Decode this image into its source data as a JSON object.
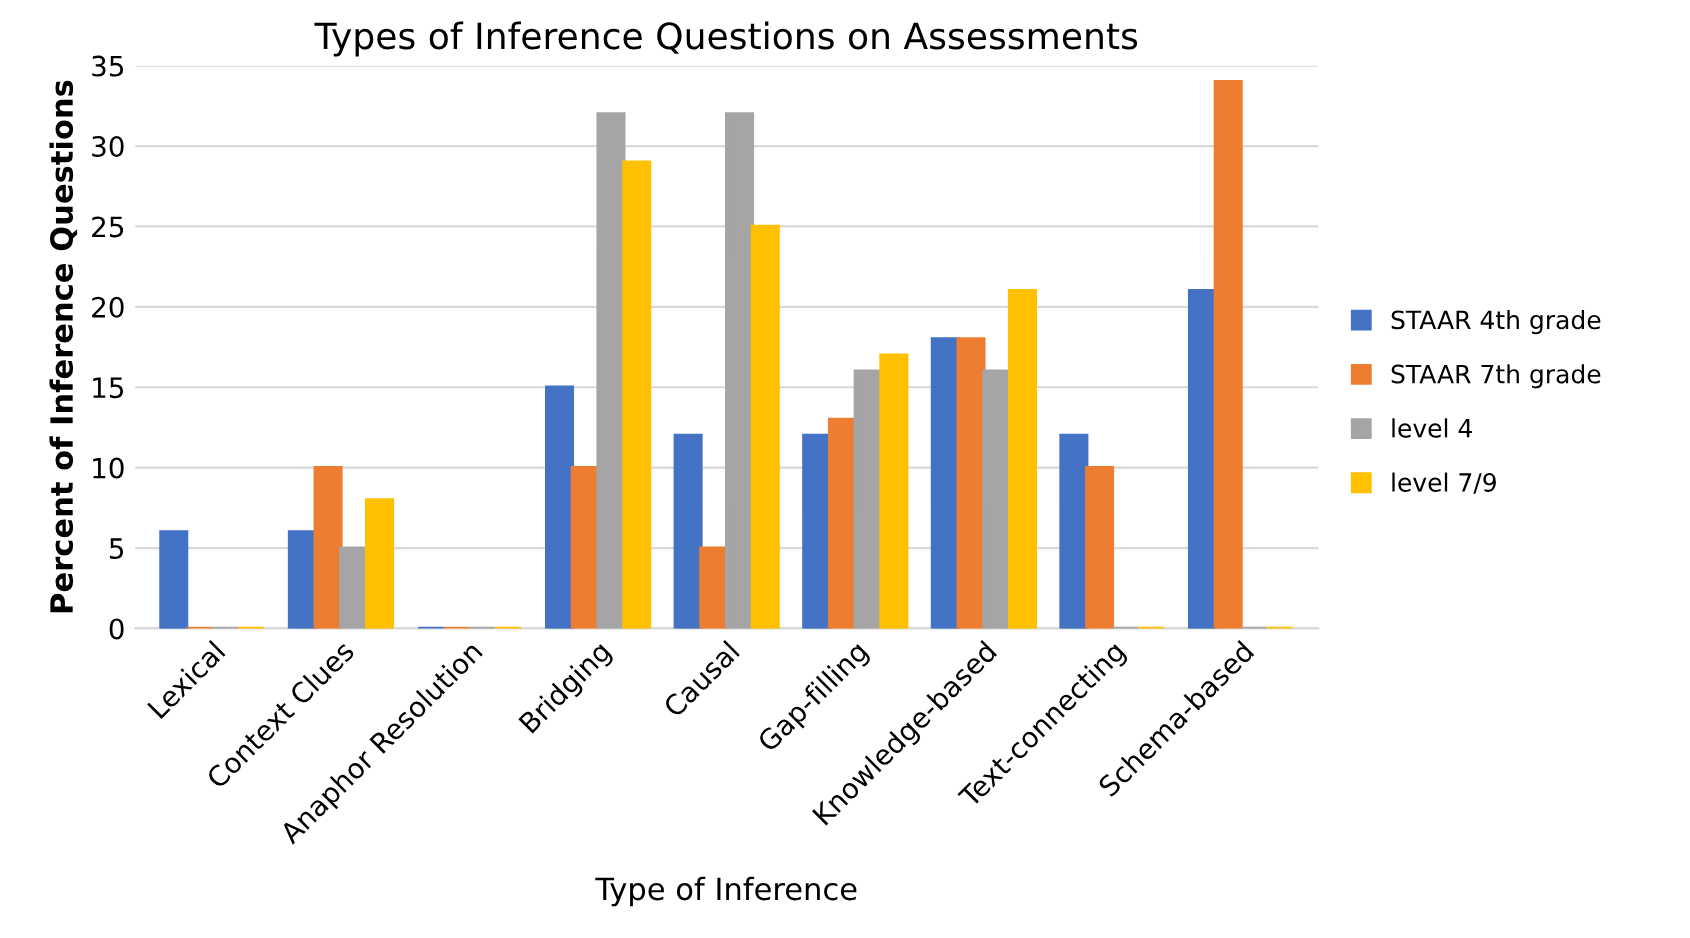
{
  "chart_data": {
    "type": "bar",
    "title": "Types of Inference Questions on Assessments",
    "xlabel": "Type of Inference",
    "ylabel": "Percent of Inference Questions",
    "categories": [
      "Lexical",
      "Context Clues",
      "Anaphor Resolution",
      "Bridging",
      "Causal",
      "Gap-filling",
      "Knowledge-based",
      "Text-connecting",
      "Schema-based"
    ],
    "series": [
      {
        "name": "STAAR 4th grade",
        "color": "#4472c4",
        "values": [
          6,
          6,
          0,
          15,
          12,
          12,
          18,
          12,
          21
        ]
      },
      {
        "name": "STAAR 7th grade",
        "color": "#ed7d31",
        "values": [
          0,
          10,
          0,
          10,
          5,
          13,
          18,
          10,
          34
        ]
      },
      {
        "name": "level 4",
        "color": "#a5a5a5",
        "values": [
          0,
          5,
          0,
          32,
          32,
          16,
          16,
          0,
          0
        ]
      },
      {
        "name": "level 7/9",
        "color": "#ffc000",
        "values": [
          0,
          8,
          0,
          29,
          25,
          17,
          21,
          0,
          0
        ]
      }
    ],
    "ylim": [
      0,
      35
    ],
    "yticks": [
      0,
      5,
      10,
      15,
      20,
      25,
      30,
      35
    ],
    "grid": "y",
    "legend": "right"
  }
}
